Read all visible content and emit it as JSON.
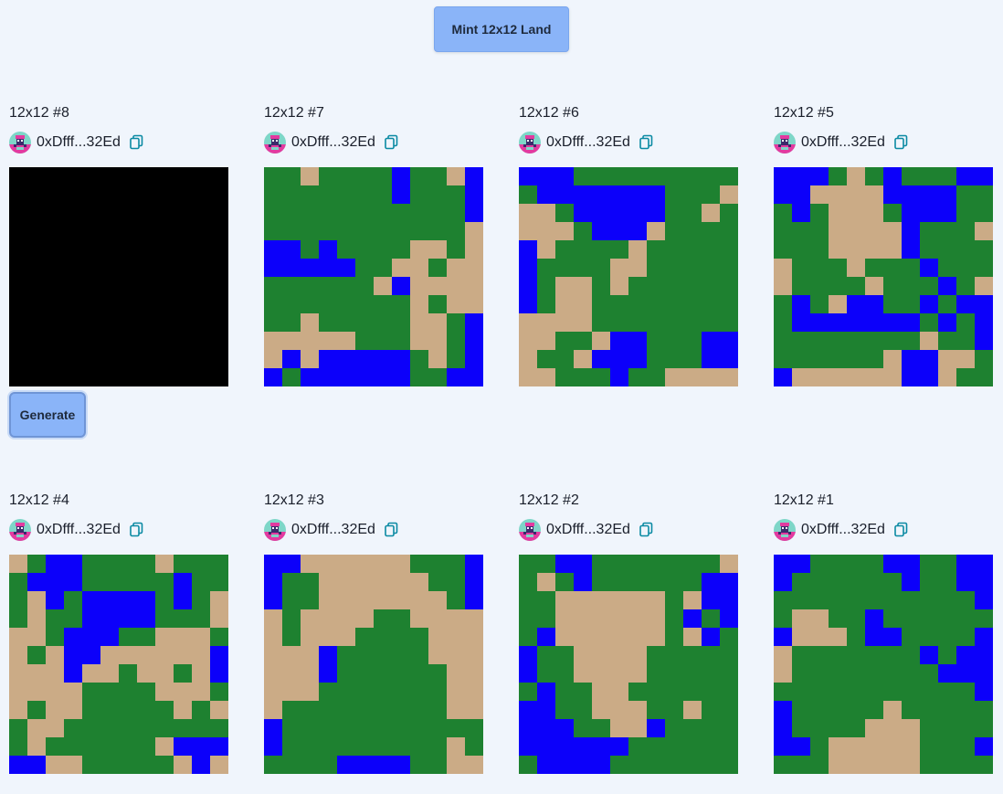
{
  "header": {
    "mint_label": "Mint 12x12 Land"
  },
  "palette": {
    "G": "#1e8130",
    "B": "#0c00fa",
    "S": "#cbab86",
    "K": "#000000"
  },
  "cards": [
    {
      "title": "12x12 #8",
      "owner": "0xDfff...32Ed",
      "black": true,
      "generate_label": "Generate",
      "rows": []
    },
    {
      "title": "12x12 #7",
      "owner": "0xDfff...32Ed",
      "black": false,
      "rows": [
        "GGSGGGGBGGSB",
        "GGGGGGGBGGGB",
        "GGGGGGGGGGGB",
        "GGGGGGGGGGGS",
        "BBGBGGGGSSGS",
        "BBBBBGGSSGSS",
        "GGGGGGSBSSSS",
        "GGGGGGGGSGSS",
        "GGSGGGGGSSGB",
        "SSSSSGGGSSGB",
        "SBSBBBBBGSGB",
        "BGBBBBBBGGBB"
      ]
    },
    {
      "title": "12x12 #6",
      "owner": "0xDfff...32Ed",
      "black": false,
      "rows": [
        "BBBGGGGGGGGG",
        "GBBBBBBBGGGS",
        "SSGBBBBBGGSG",
        "SSSGBBBSGGGG",
        "BSGGGGSGGGGG",
        "BGGGGSSGGGGG",
        "BGSSGSGGGGGG",
        "BGSSGGGGGGGG",
        "SSSSGGGGGGGG",
        "SSGGSBBGGGBB",
        "SGGSBBBGGGBB",
        "SSGGGBGGSSSS"
      ]
    },
    {
      "title": "12x12 #5",
      "owner": "0xDfff...32Ed",
      "black": false,
      "rows": [
        "BBBGSGBGGGBB",
        "BBSSSSBBBBGG",
        "GBGSSSGBBBGG",
        "GGGSSSSBGGGS",
        "GGGSSSSBGGGG",
        "SGGGSGGGBGGG",
        "SGGGGSGGGBGS",
        "GBGSBBGGBGBB",
        "GBBBBBBBGBGB",
        "GGGGGGGGSGGB",
        "GGGGGGSBBSSG",
        "BSSSSSSBBSGG"
      ]
    },
    {
      "title": "12x12 #4",
      "owner": "0xDfff...32Ed",
      "black": false,
      "rows": [
        "SGBBGGGGSGGG",
        "GBBBGGGGGBGG",
        "GSBGBBBBGBGS",
        "GSGGBBBBGGGS",
        "SSGBBBGGSSSG",
        "SGSBBSSSSSSB",
        "SSSBSSGSSGSB",
        "SSSSGGGGSSSG",
        "SGSSGGGGGSGS",
        "GSSGGGGGGGGG",
        "GSGGGGGGSBBB",
        "BBSSGGGGGSBS"
      ]
    },
    {
      "title": "12x12 #3",
      "owner": "0xDfff...32Ed",
      "black": false,
      "rows": [
        "BBSSSSSSGGGB",
        "BGGSSSSSSGGB",
        "BGGSSSSSSSGB",
        "SGSSSSGGSSSS",
        "SGSSSGGGGSSS",
        "SSSBGGGGGSSS",
        "SSSBGGGGGGSS",
        "SSSGGGGGGGSS",
        "SGGGGGGGGGSS",
        "BGGGGGGGGGGG",
        "BGGGGGGGGGSG",
        "GGGGBBBBGGSS"
      ]
    },
    {
      "title": "12x12 #2",
      "owner": "0xDfff...32Ed",
      "black": false,
      "rows": [
        "GGBBGGGGGGGS",
        "GSGBGGGGGGBB",
        "GGSSSSSSGSBB",
        "GGSSSSSSGBGB",
        "GBSSSSSSGSBG",
        "BGGSSSSGGGGG",
        "BGGSSSSGGGGG",
        "GBGGSSGGGGGG",
        "BBGGSSSGGSGG",
        "BBBGGSSBGGGG",
        "BBBBBBGGGGGG",
        "GBBBBGGGGGGG"
      ]
    },
    {
      "title": "12x12 #1",
      "owner": "0xDfff...32Ed",
      "black": false,
      "rows": [
        "BBGGGGBBGGBB",
        "BGGGGGGBGGBB",
        "GGGGGGGGGGGB",
        "GSSGGBGGGGGG",
        "BSSSGBBGGGGB",
        "SGGGGGGGBGBB",
        "SGGGGGGGGBBB",
        "GGGGGGGGGGGB",
        "BGGGGGSGGGGG",
        "BGGGGSSSGGGG",
        "BBGSSSSSGGGB",
        "GGGSSSSSGGGG"
      ]
    }
  ]
}
